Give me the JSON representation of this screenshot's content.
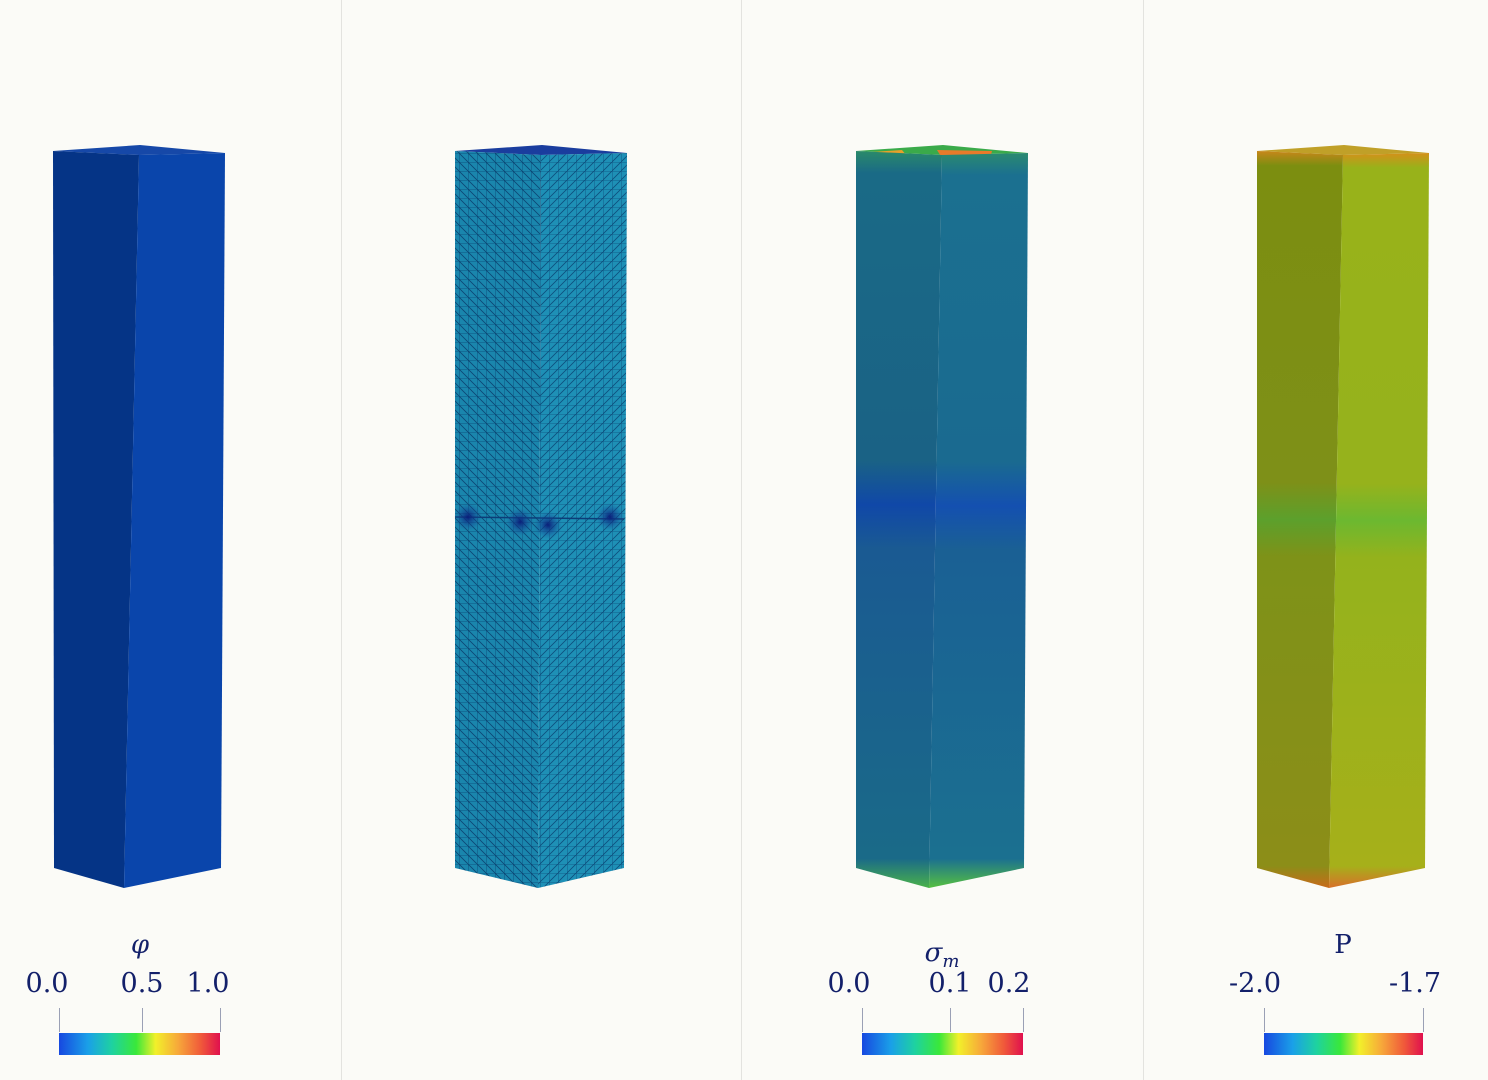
{
  "panels": [
    {
      "id": "phi",
      "colorbar": {
        "title": "φ",
        "ticks": [
          "0.0",
          "0.5",
          "1.0"
        ],
        "tick_fractions": [
          0,
          0.5,
          1
        ]
      }
    },
    {
      "id": "mesh",
      "colorbar": null
    },
    {
      "id": "sigma",
      "colorbar": {
        "title_main": "σ",
        "title_sub": "m",
        "ticks": [
          "0.0",
          "0.1",
          "0.2"
        ],
        "tick_fractions": [
          0,
          0.55,
          1
        ]
      }
    },
    {
      "id": "pressure",
      "colorbar": {
        "title": "P",
        "ticks": [
          "-2.0",
          "-1.7"
        ],
        "tick_fractions": [
          0,
          1
        ]
      }
    }
  ],
  "colors": {
    "phi_front": "#0a3f9f",
    "phi_side": "#053486",
    "mesh_face": "#1e8eb2",
    "sigma_face": "#1a6d8a",
    "pressure_face": "#93b51a",
    "text": "#13206a"
  }
}
